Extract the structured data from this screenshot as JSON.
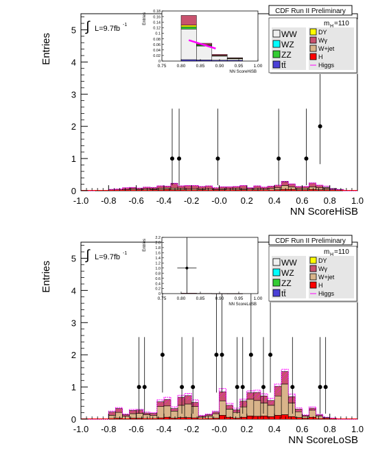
{
  "colors": {
    "WW": "#f0f0f0",
    "WZ": "#00ffff",
    "ZZ": "#33cc33",
    "tt": "#4a3fd6",
    "DY": "#ffff00",
    "Wg": "#c8526e",
    "Wjet": "#d9b48a",
    "H": "#ff0000",
    "Higgs": "#ff00ff",
    "data": "#000000"
  },
  "panels": [
    {
      "banner": "CDF Run II Preliminary",
      "ylabel": "Entries",
      "xlabel": "NN ScoreHiSB",
      "lumi": "L=9.7fb",
      "lumi_sup": "-1",
      "mass_label": "m",
      "mass_sub": "H",
      "mass_value": "=110",
      "inset": {
        "ylabel": "Entries",
        "xlabel": "NN ScoreHiSB"
      },
      "legend_left": [
        {
          "name": "WW",
          "color_key": "WW"
        },
        {
          "name": "WZ",
          "color_key": "WZ"
        },
        {
          "name": "ZZ",
          "color_key": "ZZ"
        },
        {
          "name": "tt̄",
          "color_key": "tt"
        }
      ],
      "legend_right": [
        {
          "name": "DY",
          "color_key": "DY"
        },
        {
          "name": "Wγ",
          "color_key": "Wg"
        },
        {
          "name": "W+jet",
          "color_key": "Wjet"
        },
        {
          "name": "H",
          "color_key": "H"
        },
        {
          "name": "Higgs",
          "color_key": "Higgs"
        }
      ]
    },
    {
      "banner": "CDF Run II Preliminary",
      "ylabel": "Entries",
      "xlabel": "NN ScoreLoSB",
      "lumi": "L=9.7fb",
      "lumi_sup": "-1",
      "mass_label": "m",
      "mass_sub": "H",
      "mass_value": "=110",
      "inset": {
        "ylabel": "Entries",
        "xlabel": "NN ScoreLoSB"
      },
      "legend_left": [
        {
          "name": "WW",
          "color_key": "WW"
        },
        {
          "name": "WZ",
          "color_key": "WZ"
        },
        {
          "name": "ZZ",
          "color_key": "ZZ"
        },
        {
          "name": "tt̄",
          "color_key": "tt"
        }
      ],
      "legend_right": [
        {
          "name": "DY",
          "color_key": "DY"
        },
        {
          "name": "Wγ",
          "color_key": "Wg"
        },
        {
          "name": "W+jet",
          "color_key": "Wjet"
        },
        {
          "name": "H",
          "color_key": "H"
        },
        {
          "name": "Higgs",
          "color_key": "Higgs"
        }
      ]
    }
  ],
  "chart_data": [
    {
      "type": "bar",
      "xlabel": "NN ScoreHiSB",
      "ylabel": "Entries",
      "xlim": [
        -1.0,
        1.0
      ],
      "ylim": [
        0,
        5.5
      ],
      "xticks": [
        "-1.0",
        "-0.8",
        "-0.6",
        "-0.4",
        "-0.2",
        "-0.0",
        "0.2",
        "0.4",
        "0.6",
        "0.8",
        "1.0"
      ],
      "yticks": [
        "0",
        "1",
        "2",
        "3",
        "4",
        "5"
      ],
      "bin_edges": [
        -1.0,
        -0.9,
        -0.8,
        -0.75,
        -0.7,
        -0.65,
        -0.6,
        -0.55,
        -0.5,
        -0.45,
        -0.4,
        -0.35,
        -0.3,
        -0.25,
        -0.2,
        -0.15,
        -0.1,
        -0.05,
        0.0,
        0.05,
        0.1,
        0.15,
        0.2,
        0.25,
        0.3,
        0.35,
        0.4,
        0.45,
        0.5,
        0.55,
        0.6,
        0.65,
        0.7,
        0.75,
        0.8,
        0.85,
        0.9,
        1.0
      ],
      "stack": [
        {
          "name": "H",
          "color_key": "H",
          "values": [
            0,
            0,
            0.01,
            0.01,
            0.01,
            0.02,
            0.02,
            0.02,
            0.03,
            0.03,
            0.04,
            0.03,
            0.03,
            0.02,
            0.02,
            0.03,
            0.02,
            0.02,
            0.03,
            0.02,
            0.03,
            0.03,
            0.02,
            0.03,
            0.02,
            0.02,
            0.03,
            0.04,
            0.04,
            0.03,
            0.03,
            0.04,
            0.03,
            0.03,
            0.02,
            0.01,
            0
          ]
        },
        {
          "name": "W+jet",
          "color_key": "Wjet",
          "values": [
            0,
            0,
            0.01,
            0.01,
            0.02,
            0.03,
            0.02,
            0.03,
            0.02,
            0.04,
            0.04,
            0.05,
            0.04,
            0.03,
            0.04,
            0.03,
            0.04,
            0.02,
            0.03,
            0.03,
            0.04,
            0.03,
            0.03,
            0.04,
            0.03,
            0.05,
            0.06,
            0.12,
            0.08,
            0.04,
            0.05,
            0.08,
            0.06,
            0.04,
            0.02,
            0.01,
            0
          ]
        },
        {
          "name": "Wγ",
          "color_key": "Wg",
          "values": [
            0,
            0.01,
            0.02,
            0.03,
            0.06,
            0.05,
            0.04,
            0.06,
            0.05,
            0.08,
            0.06,
            0.14,
            0.08,
            0.11,
            0.1,
            0.07,
            0.09,
            0.05,
            0.06,
            0.07,
            0.06,
            0.1,
            0.04,
            0.08,
            0.06,
            0.07,
            0.08,
            0.12,
            0.09,
            0.06,
            0.05,
            0.12,
            0.08,
            0.03,
            0.01,
            0.01,
            0
          ]
        },
        {
          "name": "DY",
          "color_key": "DY",
          "values": [
            0,
            0,
            0,
            0,
            0,
            0,
            0,
            0,
            0,
            0,
            0,
            0.01,
            0,
            0,
            0,
            0,
            0,
            0,
            0,
            0,
            0,
            0,
            0,
            0,
            0,
            0,
            0,
            0.01,
            0,
            0,
            0,
            0,
            0,
            0,
            0,
            0,
            0
          ]
        },
        {
          "name": "WW",
          "color_key": "WW",
          "values": [
            0,
            0,
            0,
            0,
            0,
            0,
            0,
            0,
            0,
            0,
            0,
            0,
            0,
            0,
            0,
            0,
            0,
            0,
            0,
            0,
            0,
            0,
            0,
            0,
            0,
            0,
            0,
            0,
            0,
            0,
            0,
            0,
            0,
            0.04,
            0.02,
            0.01,
            0
          ]
        }
      ],
      "signal_values": [
        0,
        0.01,
        0.04,
        0.05,
        0.09,
        0.1,
        0.08,
        0.11,
        0.1,
        0.15,
        0.14,
        0.23,
        0.15,
        0.16,
        0.16,
        0.13,
        0.15,
        0.09,
        0.12,
        0.12,
        0.13,
        0.16,
        0.09,
        0.15,
        0.11,
        0.14,
        0.17,
        0.29,
        0.21,
        0.13,
        0.13,
        0.24,
        0.17,
        0.14,
        0.05,
        0.03,
        0
      ],
      "data_points": [
        {
          "x": -0.34,
          "y": 1
        },
        {
          "x": -0.29,
          "y": 1
        },
        {
          "x": -0.01,
          "y": 1
        },
        {
          "x": 0.43,
          "y": 1
        },
        {
          "x": 0.63,
          "y": 1
        },
        {
          "x": 0.73,
          "y": 2
        }
      ],
      "inset": {
        "xlim": [
          0.75,
          1.0
        ],
        "ylim": [
          0,
          0.18
        ],
        "xticks": [
          "0.75",
          "0.80",
          "0.85",
          "0.90",
          "0.95",
          "1.00"
        ],
        "yticks": [
          "0",
          "0.02",
          "0.04",
          "0.06",
          "0.08",
          "0.1",
          "0.12",
          "0.14",
          "0.16",
          "0.18"
        ],
        "bin_edges": [
          0.8,
          0.84,
          0.88,
          0.92,
          0.96
        ],
        "stack": [
          {
            "name": "t̄t",
            "color_key": "tt",
            "values": [
              0.005,
              0.004,
              0.003,
              0.003
            ]
          },
          {
            "name": "WW",
            "color_key": "WW",
            "values": [
              0.11,
              0.05,
              0.015,
              0.006
            ]
          },
          {
            "name": "ZZ",
            "color_key": "ZZ",
            "values": [
              0.008,
              0.003,
              0.001,
              0.0005
            ]
          },
          {
            "name": "DY",
            "color_key": "DY",
            "values": [
              0.006,
              0.002,
              0.001,
              0.0005
            ]
          },
          {
            "name": "Wγ",
            "color_key": "Wg",
            "values": [
              0.035,
              0.005,
              0.004,
              0.002
            ]
          }
        ],
        "signal_line": [
          [
            0.82,
            0.075
          ],
          [
            0.89,
            0.045
          ]
        ]
      }
    },
    {
      "type": "bar",
      "xlabel": "NN ScoreLoSB",
      "ylabel": "Entries",
      "xlim": [
        -1.0,
        1.0
      ],
      "ylim": [
        0,
        5.5
      ],
      "xticks": [
        "-1.0",
        "-0.8",
        "-0.6",
        "-0.4",
        "-0.2",
        "-0.0",
        "0.2",
        "0.4",
        "0.6",
        "0.8",
        "1.0"
      ],
      "yticks": [
        "0",
        "1",
        "2",
        "3",
        "4",
        "5"
      ],
      "bin_edges": [
        -1.0,
        -0.9,
        -0.8,
        -0.75,
        -0.7,
        -0.65,
        -0.6,
        -0.55,
        -0.5,
        -0.45,
        -0.4,
        -0.35,
        -0.3,
        -0.25,
        -0.2,
        -0.15,
        -0.1,
        -0.05,
        0.0,
        0.05,
        0.1,
        0.15,
        0.2,
        0.25,
        0.3,
        0.35,
        0.4,
        0.45,
        0.5,
        0.55,
        0.6,
        0.65,
        0.7,
        0.75,
        0.8,
        0.85,
        0.9,
        1.0
      ],
      "stack": [
        {
          "name": "H",
          "color_key": "H",
          "values": [
            0,
            0,
            0.02,
            0.03,
            0.01,
            0.03,
            0.03,
            0.02,
            0.02,
            0.04,
            0.06,
            0.03,
            0.05,
            0.05,
            0.04,
            0.01,
            0.02,
            0.03,
            0.12,
            0.06,
            0.03,
            0.06,
            0.1,
            0.09,
            0.1,
            0.08,
            0.12,
            0.14,
            0.08,
            0.05,
            0.03,
            0.06,
            0.02,
            0.02,
            0.01,
            0,
            0
          ]
        },
        {
          "name": "W+jet",
          "color_key": "Wjet",
          "values": [
            0,
            0,
            0.1,
            0.18,
            0.08,
            0.14,
            0.15,
            0.12,
            0.1,
            0.35,
            0.35,
            0.22,
            0.38,
            0.42,
            0.35,
            0.05,
            0.08,
            0.14,
            0.45,
            0.25,
            0.18,
            0.32,
            0.52,
            0.49,
            0.4,
            0.35,
            0.6,
            0.95,
            0.42,
            0.18,
            0.06,
            0.22,
            0.08,
            0.02,
            0.01,
            0,
            0
          ]
        },
        {
          "name": "Wγ",
          "color_key": "Wg",
          "values": [
            0,
            0,
            0.1,
            0.12,
            0.05,
            0.1,
            0.1,
            0.05,
            0.06,
            0.15,
            0.2,
            0.08,
            0.25,
            0.26,
            0.13,
            0.04,
            0.04,
            0.05,
            0.28,
            0.12,
            0.08,
            0.18,
            0.2,
            0.25,
            0.22,
            0.15,
            0.3,
            0.39,
            0.2,
            0.08,
            0.03,
            0.06,
            0.03,
            0.01,
            0.01,
            0,
            0
          ]
        }
      ],
      "signal_values": [
        0,
        0,
        0.25,
        0.36,
        0.16,
        0.3,
        0.31,
        0.22,
        0.2,
        0.6,
        0.68,
        0.38,
        0.74,
        0.8,
        0.6,
        0.12,
        0.16,
        0.25,
        0.95,
        0.49,
        0.34,
        0.62,
        0.88,
        0.9,
        0.79,
        0.65,
        1.09,
        1.55,
        0.78,
        0.35,
        0.13,
        0.38,
        0.15,
        0.06,
        0.03,
        0,
        0
      ],
      "data_points": [
        {
          "x": -0.58,
          "y": 1
        },
        {
          "x": -0.54,
          "y": 1
        },
        {
          "x": -0.41,
          "y": 2
        },
        {
          "x": -0.27,
          "y": 1
        },
        {
          "x": -0.19,
          "y": 1
        },
        {
          "x": -0.02,
          "y": 2
        },
        {
          "x": 0.02,
          "y": 2
        },
        {
          "x": 0.13,
          "y": 1
        },
        {
          "x": 0.17,
          "y": 1
        },
        {
          "x": 0.23,
          "y": 2
        },
        {
          "x": 0.32,
          "y": 1
        },
        {
          "x": 0.37,
          "y": 2
        },
        {
          "x": 0.53,
          "y": 1
        },
        {
          "x": 0.73,
          "y": 1
        },
        {
          "x": 0.77,
          "y": 1
        }
      ],
      "inset": {
        "xlim": [
          0.75,
          1.0
        ],
        "ylim": [
          0,
          2.2
        ],
        "xticks": [
          "0.75",
          "0.80",
          "0.85",
          "0.90",
          "0.95",
          "1.00"
        ],
        "yticks": [
          "0",
          "0.2",
          "0.4",
          "0.6",
          "0.8",
          "1.0",
          "1.2",
          "1.4",
          "1.6",
          "1.8",
          "2.0",
          "2.2"
        ],
        "bin_edges": [
          0.8,
          0.84,
          0.88,
          0.92,
          0.96
        ],
        "stack": [
          {
            "name": "Wγ",
            "color_key": "Wg",
            "values": [
              0.02,
              0.01,
              0.005,
              0.003
            ]
          }
        ],
        "data_points": [
          {
            "x": 0.815,
            "y": 1.0,
            "xerr": 0.025
          }
        ]
      }
    }
  ]
}
